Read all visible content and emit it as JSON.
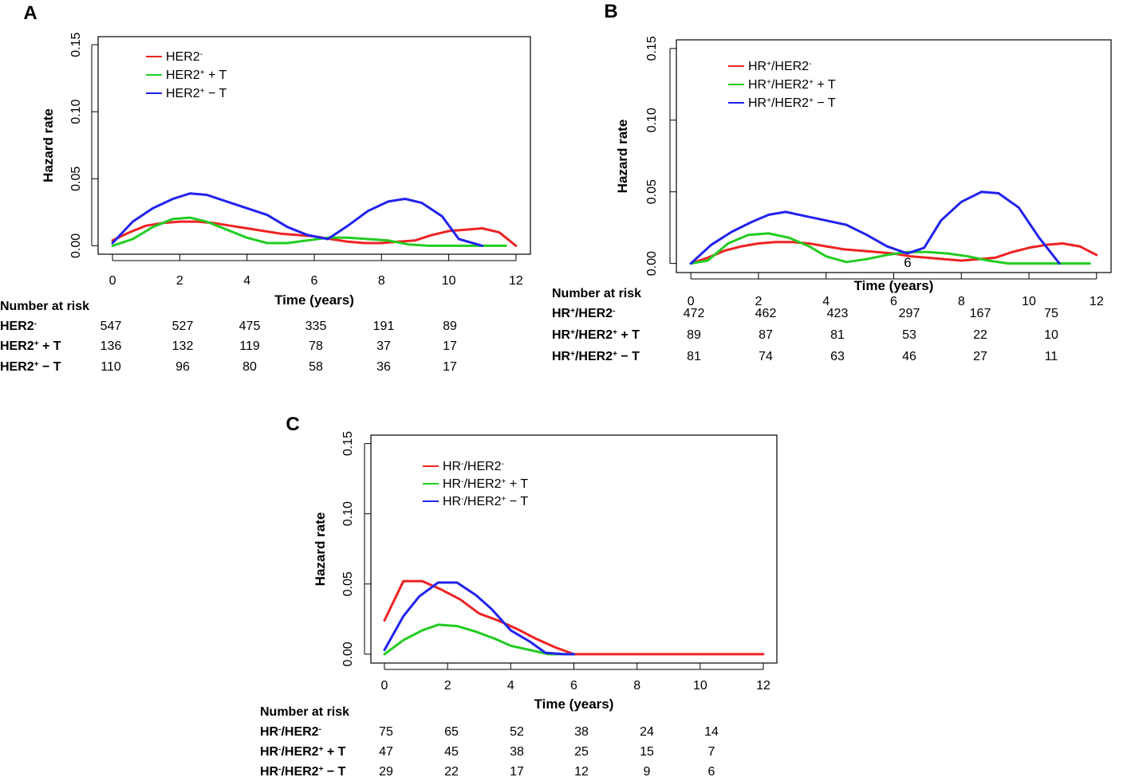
{
  "chart_data": [
    {
      "panel": "A",
      "type": "line",
      "ylabel": "Hazard rate",
      "xlabel": "Time (years)",
      "xlim": [
        0,
        12
      ],
      "ylim": [
        0,
        0.15
      ],
      "xticks": [
        "0",
        "2",
        "4",
        "6",
        "8",
        "10",
        "12"
      ],
      "yticks": [
        "0.00",
        "0.05",
        "0.10",
        "0.15"
      ],
      "legend": [
        {
          "base": "HER2",
          "sup": "-",
          "rest": "",
          "color": "#ee2222"
        },
        {
          "base": "HER2",
          "sup": "+",
          "rest": " + T",
          "color": "#22cc22"
        },
        {
          "base": "HER2",
          "sup": "+",
          "rest": " − T",
          "color": "#2222ee"
        }
      ],
      "series": [
        {
          "name": "HER2-",
          "color": "#ee2222",
          "points": [
            [
              0,
              0.004
            ],
            [
              0.5,
              0.01
            ],
            [
              1,
              0.015
            ],
            [
              1.5,
              0.017
            ],
            [
              2,
              0.018
            ],
            [
              2.5,
              0.018
            ],
            [
              3,
              0.017
            ],
            [
              3.5,
              0.015
            ],
            [
              4,
              0.013
            ],
            [
              4.5,
              0.011
            ],
            [
              5,
              0.009
            ],
            [
              5.5,
              0.008
            ],
            [
              6,
              0.007
            ],
            [
              6.5,
              0.005
            ],
            [
              7,
              0.003
            ],
            [
              7.5,
              0.002
            ],
            [
              8,
              0.002
            ],
            [
              8.5,
              0.003
            ],
            [
              9,
              0.004
            ],
            [
              9.5,
              0.008
            ],
            [
              10,
              0.011
            ],
            [
              10.5,
              0.012
            ],
            [
              11,
              0.013
            ],
            [
              11.5,
              0.01
            ],
            [
              12,
              0.0
            ]
          ]
        },
        {
          "name": "HER2+ + T",
          "color": "#22cc22",
          "points": [
            [
              0,
              0.0
            ],
            [
              0.6,
              0.005
            ],
            [
              1.2,
              0.014
            ],
            [
              1.8,
              0.02
            ],
            [
              2.3,
              0.021
            ],
            [
              2.8,
              0.018
            ],
            [
              3.4,
              0.012
            ],
            [
              4,
              0.006
            ],
            [
              4.6,
              0.002
            ],
            [
              5.2,
              0.002
            ],
            [
              5.8,
              0.004
            ],
            [
              6.4,
              0.006
            ],
            [
              7,
              0.006
            ],
            [
              7.6,
              0.005
            ],
            [
              8.2,
              0.004
            ],
            [
              8.8,
              0.001
            ],
            [
              9.4,
              0.0
            ],
            [
              10,
              0.0
            ],
            [
              11,
              0.0
            ],
            [
              11.7,
              0.0
            ]
          ]
        },
        {
          "name": "HER2+ − T",
          "color": "#2222ee",
          "points": [
            [
              0,
              0.002
            ],
            [
              0.6,
              0.018
            ],
            [
              1.2,
              0.028
            ],
            [
              1.8,
              0.035
            ],
            [
              2.3,
              0.039
            ],
            [
              2.8,
              0.038
            ],
            [
              3.4,
              0.033
            ],
            [
              4,
              0.028
            ],
            [
              4.6,
              0.023
            ],
            [
              5.2,
              0.014
            ],
            [
              5.8,
              0.008
            ],
            [
              6.4,
              0.005
            ],
            [
              7,
              0.015
            ],
            [
              7.6,
              0.026
            ],
            [
              8.2,
              0.033
            ],
            [
              8.7,
              0.035
            ],
            [
              9.2,
              0.032
            ],
            [
              9.8,
              0.022
            ],
            [
              10.3,
              0.005
            ],
            [
              11,
              0.0
            ]
          ]
        }
      ],
      "risk_title": "Number at risk",
      "risk_rows": [
        {
          "base": "HER2",
          "sup": "-",
          "rest": "",
          "values": [
            "547",
            "527",
            "475",
            "335",
            "191",
            "89"
          ]
        },
        {
          "base": "HER2",
          "sup": "+",
          "rest": " + T",
          "values": [
            "136",
            "132",
            "119",
            "78",
            "37",
            "17"
          ]
        },
        {
          "base": "HER2",
          "sup": "+",
          "rest": " − T",
          "values": [
            "110",
            "96",
            "80",
            "58",
            "36",
            "17"
          ]
        }
      ]
    },
    {
      "panel": "B",
      "type": "line",
      "ylabel": "Hazard rate",
      "xlabel": "Time (years)",
      "xlim": [
        0,
        12
      ],
      "ylim": [
        0,
        0.15
      ],
      "xticks": [
        "0",
        "2",
        "4",
        "6",
        "8",
        "10",
        "12"
      ],
      "yticks": [
        "0.00",
        "0.05",
        "0.10",
        "0.15"
      ],
      "legend": [
        {
          "base": "HR",
          "sup": "+",
          "rest": "/HER2",
          "sup2": "-",
          "color": "#ee2222"
        },
        {
          "base": "HR",
          "sup": "+",
          "rest": "/HER2",
          "sup2": "+",
          "tail": " + T",
          "color": "#22cc22"
        },
        {
          "base": "HR",
          "sup": "+",
          "rest": "/HER2",
          "sup2": "+",
          "tail": " − T",
          "color": "#2222ee"
        }
      ],
      "series": [
        {
          "name": "HR+/HER2-",
          "color": "#ee2222",
          "points": [
            [
              0,
              0.0
            ],
            [
              0.5,
              0.004
            ],
            [
              1,
              0.009
            ],
            [
              1.5,
              0.012
            ],
            [
              2,
              0.014
            ],
            [
              2.5,
              0.015
            ],
            [
              3,
              0.015
            ],
            [
              3.5,
              0.014
            ],
            [
              4,
              0.012
            ],
            [
              4.5,
              0.01
            ],
            [
              5,
              0.009
            ],
            [
              5.5,
              0.008
            ],
            [
              6,
              0.007
            ],
            [
              6.5,
              0.005
            ],
            [
              7,
              0.004
            ],
            [
              7.5,
              0.003
            ],
            [
              8,
              0.002
            ],
            [
              8.5,
              0.003
            ],
            [
              9,
              0.004
            ],
            [
              9.5,
              0.008
            ],
            [
              10,
              0.011
            ],
            [
              10.5,
              0.013
            ],
            [
              11,
              0.014
            ],
            [
              11.5,
              0.012
            ],
            [
              12,
              0.006
            ]
          ]
        },
        {
          "name": "HR+/HER2+ + T",
          "color": "#22cc22",
          "points": [
            [
              0,
              0.0
            ],
            [
              0.5,
              0.002
            ],
            [
              1.1,
              0.014
            ],
            [
              1.7,
              0.02
            ],
            [
              2.3,
              0.021
            ],
            [
              2.9,
              0.018
            ],
            [
              3.5,
              0.012
            ],
            [
              4,
              0.005
            ],
            [
              4.6,
              0.001
            ],
            [
              5.2,
              0.003
            ],
            [
              5.8,
              0.006
            ],
            [
              6.4,
              0.008
            ],
            [
              7,
              0.008
            ],
            [
              7.6,
              0.007
            ],
            [
              8.2,
              0.005
            ],
            [
              8.8,
              0.002
            ],
            [
              9.4,
              0.0
            ],
            [
              10,
              0.0
            ],
            [
              11,
              0.0
            ],
            [
              11.8,
              0.0
            ]
          ]
        },
        {
          "name": "HR+/HER2+ − T",
          "color": "#2222ee",
          "points": [
            [
              0,
              0.0
            ],
            [
              0.6,
              0.013
            ],
            [
              1.2,
              0.022
            ],
            [
              1.8,
              0.029
            ],
            [
              2.3,
              0.034
            ],
            [
              2.8,
              0.036
            ],
            [
              3.4,
              0.033
            ],
            [
              4,
              0.03
            ],
            [
              4.6,
              0.027
            ],
            [
              5.2,
              0.02
            ],
            [
              5.8,
              0.012
            ],
            [
              6.4,
              0.007
            ],
            [
              6.9,
              0.011
            ],
            [
              7.4,
              0.03
            ],
            [
              8,
              0.043
            ],
            [
              8.6,
              0.05
            ],
            [
              9.1,
              0.049
            ],
            [
              9.7,
              0.039
            ],
            [
              10.3,
              0.018
            ],
            [
              10.9,
              0.0
            ]
          ]
        }
      ],
      "risk_title": "Number at risk",
      "risk_rows": [
        {
          "base": "HR",
          "sup": "+",
          "rest": "/HER2",
          "sup2": "-",
          "values": [
            "472",
            "462",
            "423",
            "297",
            "167",
            "75"
          ]
        },
        {
          "base": "HR",
          "sup": "+",
          "rest": "/HER2",
          "sup2": "+",
          "tail": " + T",
          "values": [
            "89",
            "87",
            "81",
            "53",
            "22",
            "10"
          ]
        },
        {
          "base": "HR",
          "sup": "+",
          "rest": "/HER2",
          "sup2": "+",
          "tail": " − T",
          "values": [
            "81",
            "74",
            "63",
            "46",
            "27",
            "11"
          ]
        }
      ]
    },
    {
      "panel": "C",
      "type": "line",
      "ylabel": "Hazard rate",
      "xlabel": "Time (years)",
      "xlim": [
        0,
        12
      ],
      "ylim": [
        0,
        0.15
      ],
      "xticks": [
        "0",
        "2",
        "4",
        "6",
        "8",
        "10",
        "12"
      ],
      "yticks": [
        "0.00",
        "0.05",
        "0.10",
        "0.15"
      ],
      "legend": [
        {
          "base": "HR",
          "sup": "-",
          "rest": "/HER2",
          "sup2": "-",
          "color": "#ee2222"
        },
        {
          "base": "HR",
          "sup": "-",
          "rest": "/HER2",
          "sup2": "+",
          "tail": " + T",
          "color": "#22cc22"
        },
        {
          "base": "HR",
          "sup": "-",
          "rest": "/HER2",
          "sup2": "+",
          "tail": " − T",
          "color": "#2222ee"
        }
      ],
      "series": [
        {
          "name": "HR-/HER2-",
          "color": "#ee2222",
          "points": [
            [
              0,
              0.024
            ],
            [
              0.6,
              0.052
            ],
            [
              1.2,
              0.052
            ],
            [
              1.8,
              0.046
            ],
            [
              2.4,
              0.039
            ],
            [
              3,
              0.029
            ],
            [
              3.6,
              0.024
            ],
            [
              4.2,
              0.018
            ],
            [
              4.8,
              0.011
            ],
            [
              5.4,
              0.005
            ],
            [
              6,
              0.0
            ],
            [
              7,
              0.0
            ],
            [
              8,
              0.0
            ],
            [
              9,
              0.0
            ],
            [
              10,
              0.0
            ],
            [
              11,
              0.0
            ],
            [
              12,
              0.0
            ]
          ]
        },
        {
          "name": "HR-/HER2+ + T",
          "color": "#22cc22",
          "points": [
            [
              0,
              0.0
            ],
            [
              0.6,
              0.01
            ],
            [
              1.2,
              0.017
            ],
            [
              1.7,
              0.021
            ],
            [
              2.3,
              0.02
            ],
            [
              2.9,
              0.016
            ],
            [
              3.5,
              0.011
            ],
            [
              4,
              0.006
            ],
            [
              4.6,
              0.003
            ],
            [
              5.2,
              0.0
            ],
            [
              6,
              0.0
            ]
          ]
        },
        {
          "name": "HR-/HER2+ − T",
          "color": "#2222ee",
          "points": [
            [
              0,
              0.003
            ],
            [
              0.6,
              0.027
            ],
            [
              1.1,
              0.041
            ],
            [
              1.7,
              0.051
            ],
            [
              2.3,
              0.051
            ],
            [
              2.9,
              0.042
            ],
            [
              3.4,
              0.032
            ],
            [
              4,
              0.017
            ],
            [
              4.6,
              0.009
            ],
            [
              5.1,
              0.001
            ],
            [
              5.7,
              0.0
            ],
            [
              6,
              0.0
            ]
          ]
        }
      ],
      "risk_title": "Number at risk",
      "risk_rows": [
        {
          "base": "HR",
          "sup": "-",
          "rest": "/HER2",
          "sup2": "-",
          "values": [
            "75",
            "65",
            "52",
            "38",
            "24",
            "14"
          ]
        },
        {
          "base": "HR",
          "sup": "-",
          "rest": "/HER2",
          "sup2": "+",
          "tail": " + T",
          "values": [
            "47",
            "45",
            "38",
            "25",
            "15",
            "7"
          ]
        },
        {
          "base": "HR",
          "sup": "-",
          "rest": "/HER2",
          "sup2": "+",
          "tail": " − T",
          "values": [
            "29",
            "22",
            "17",
            "12",
            "9",
            "6"
          ]
        }
      ]
    }
  ],
  "stray_label": "6"
}
